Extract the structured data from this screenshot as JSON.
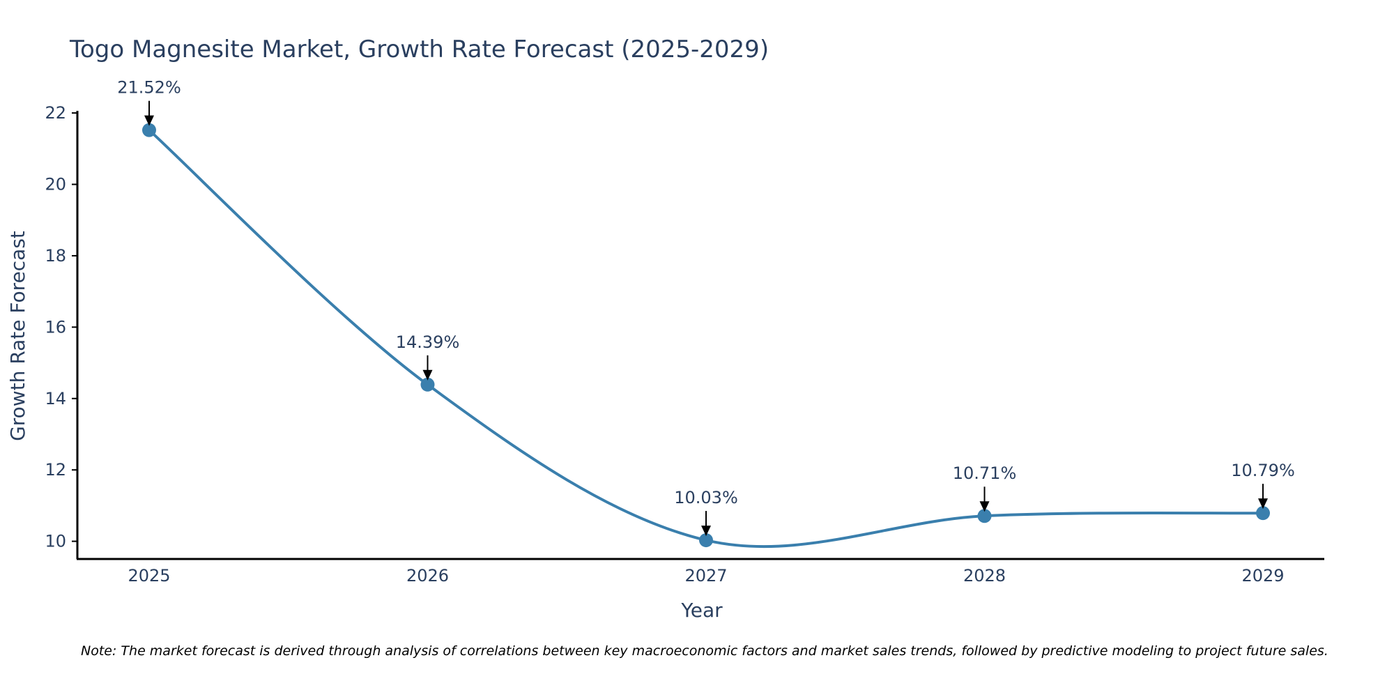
{
  "chart_data": {
    "type": "line",
    "title": "Togo Magnesite Market, Growth Rate Forecast (2025-2029)",
    "xlabel": "Year",
    "ylabel": "Growth Rate Forecast",
    "categories": [
      "2025",
      "2026",
      "2027",
      "2028",
      "2029"
    ],
    "series": [
      {
        "name": "Growth Rate Forecast",
        "values": [
          21.52,
          14.39,
          10.03,
          10.71,
          10.79
        ],
        "labels": [
          "21.52%",
          "14.39%",
          "10.03%",
          "10.71%",
          "10.79%"
        ],
        "color": "#3a7fad"
      }
    ],
    "yticks": [
      10,
      12,
      14,
      16,
      18,
      20,
      22
    ],
    "ylim": [
      9.5,
      22
    ],
    "grid": false,
    "line_shape": "spline",
    "annotation_arrows": true
  },
  "note": "Note: The market forecast is derived through analysis of correlations between key macroeconomic factors and market sales trends, followed by predictive modeling to project future sales."
}
